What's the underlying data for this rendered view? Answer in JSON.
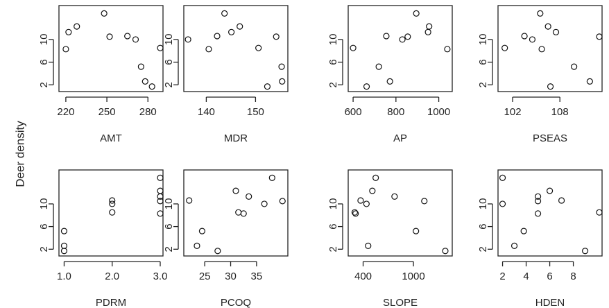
{
  "ylabel": "Deer density",
  "chart_data": [
    {
      "type": "scatter",
      "xlabel": "AMT",
      "xticks": [
        220,
        250,
        280
      ],
      "xticklabels": [
        "220",
        "250",
        "280"
      ],
      "xlim": [
        217,
        289
      ],
      "ylim": [
        1.3,
        15.5
      ],
      "yticks": [
        2,
        6,
        10
      ],
      "yticklabels": [
        "2",
        "6",
        "10"
      ],
      "x": [
        220,
        222,
        228,
        248,
        252,
        265,
        271,
        275,
        278,
        283,
        289
      ],
      "y": [
        8.3,
        11.3,
        12.3,
        14.6,
        10.5,
        10.6,
        10.0,
        5.2,
        2.6,
        1.7,
        8.5
      ]
    },
    {
      "type": "scatter",
      "xlabel": "MDR",
      "xticks": [
        140,
        150
      ],
      "xticklabels": [
        "140",
        "150"
      ],
      "xlim": [
        136,
        156
      ],
      "ylim": [
        1.3,
        15.5
      ],
      "yticks": [
        2,
        6,
        10
      ],
      "yticklabels": [
        "2",
        "6",
        "10"
      ],
      "x": [
        136.3,
        140.5,
        142.2,
        143.7,
        145.1,
        146.8,
        150.6,
        152.4,
        154.2,
        155.3,
        155.4
      ],
      "y": [
        10.0,
        8.3,
        10.6,
        14.6,
        11.3,
        12.3,
        8.5,
        1.7,
        10.5,
        5.2,
        2.6
      ]
    },
    {
      "type": "scatter",
      "xlabel": "AP",
      "xticks": [
        600,
        800,
        1000
      ],
      "xticklabels": [
        "600",
        "800",
        "1000"
      ],
      "xlim": [
        590,
        1050
      ],
      "ylim": [
        1.3,
        15.5
      ],
      "yticks": [
        2,
        6,
        10
      ],
      "yticklabels": [
        "2",
        "6",
        "10"
      ],
      "x": [
        600,
        663,
        720,
        755,
        772,
        830,
        855,
        895,
        950,
        955,
        1040
      ],
      "y": [
        8.5,
        1.7,
        5.2,
        10.6,
        2.6,
        10.0,
        10.5,
        14.6,
        11.3,
        12.3,
        8.3
      ]
    },
    {
      "type": "scatter",
      "xlabel": "PSEAS",
      "xticks": [
        102,
        108
      ],
      "xticklabels": [
        "102",
        "108"
      ],
      "xlim": [
        100.5,
        113
      ],
      "ylim": [
        1.3,
        15.5
      ],
      "yticks": [
        2,
        6,
        10
      ],
      "yticklabels": [
        "2",
        "6",
        "10"
      ],
      "x": [
        101,
        103.5,
        104.5,
        105.5,
        105.7,
        106.5,
        106.8,
        107.5,
        109.8,
        111.8,
        113
      ],
      "y": [
        8.5,
        10.6,
        10.0,
        14.6,
        8.3,
        12.3,
        1.7,
        11.3,
        5.2,
        2.6,
        10.5
      ]
    },
    {
      "type": "scatter",
      "xlabel": "PDRM",
      "xticks": [
        1.0,
        2.0,
        3.0
      ],
      "xticklabels": [
        "1.0",
        "2.0",
        "3.0"
      ],
      "xlim": [
        0.95,
        3.0
      ],
      "ylim": [
        1.3,
        15.5
      ],
      "yticks": [
        2,
        6,
        10
      ],
      "yticklabels": [
        "2",
        "6",
        "10"
      ],
      "x": [
        1,
        1,
        1,
        2,
        2,
        2,
        3,
        3,
        3,
        3,
        3
      ],
      "y": [
        5.2,
        2.6,
        1.7,
        10.6,
        10.0,
        8.5,
        14.6,
        12.3,
        11.3,
        10.5,
        8.3
      ]
    },
    {
      "type": "scatter",
      "xlabel": "PCOQ",
      "xticks": [
        25,
        30,
        35
      ],
      "xticklabels": [
        "25",
        "30",
        "35"
      ],
      "xlim": [
        21.5,
        40.5
      ],
      "ylim": [
        1.3,
        15.5
      ],
      "yticks": [
        2,
        6,
        10
      ],
      "yticklabels": [
        "2",
        "6",
        "10"
      ],
      "x": [
        22,
        23.5,
        24.5,
        27.5,
        31,
        31.5,
        32.5,
        33.5,
        36.5,
        38,
        40
      ],
      "y": [
        10.6,
        2.6,
        5.2,
        1.7,
        12.3,
        8.5,
        8.3,
        11.3,
        10.0,
        14.6,
        10.5
      ]
    },
    {
      "type": "scatter",
      "xlabel": "SLOPE",
      "xticks": [
        400,
        1000
      ],
      "xticklabels": [
        "400",
        "1000"
      ],
      "xlim": [
        255,
        1430
      ],
      "ylim": [
        1.3,
        15.5
      ],
      "yticks": [
        2,
        6,
        10
      ],
      "yticklabels": [
        "2",
        "6",
        "10"
      ],
      "x": [
        300,
        310,
        370,
        440,
        460,
        510,
        550,
        775,
        1030,
        1130,
        1380
      ],
      "y": [
        8.5,
        8.3,
        10.6,
        10.0,
        2.6,
        12.3,
        14.6,
        11.3,
        5.2,
        10.5,
        1.7
      ]
    },
    {
      "type": "scatter",
      "xlabel": "HDEN",
      "xticks": [
        2,
        4,
        6,
        8
      ],
      "xticklabels": [
        "2",
        "4",
        "6",
        "8"
      ],
      "xlim": [
        1.85,
        10.2
      ],
      "ylim": [
        1.3,
        15.5
      ],
      "yticks": [
        2,
        6,
        10
      ],
      "yticklabels": [
        "2",
        "6",
        "10"
      ],
      "x": [
        2,
        2,
        3,
        3.8,
        5,
        5,
        5,
        6,
        7,
        9,
        10.2
      ],
      "y": [
        14.6,
        10.0,
        2.6,
        5.2,
        11.3,
        10.5,
        8.3,
        12.3,
        10.6,
        1.7,
        8.5
      ]
    }
  ]
}
